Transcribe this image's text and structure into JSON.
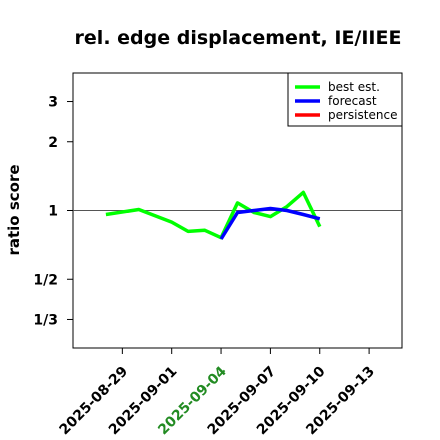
{
  "chart_data": {
    "type": "line",
    "title": "rel. edge displacement, IE/IIEE",
    "xlabel": "",
    "ylabel": "ratio score",
    "y_scale": "log",
    "ylim": [
      0.25,
      4.0
    ],
    "yticks": [
      {
        "value": 0.3333333333,
        "label": "1/3"
      },
      {
        "value": 0.5,
        "label": "1/2"
      },
      {
        "value": 1,
        "label": "1"
      },
      {
        "value": 2,
        "label": "2"
      },
      {
        "value": 3,
        "label": "3"
      }
    ],
    "xlim": [
      "2025-08-26",
      "2025-09-15"
    ],
    "xticks": [
      {
        "value": "2025-08-29",
        "label": "2025-08-29",
        "color": "#000000"
      },
      {
        "value": "2025-09-01",
        "label": "2025-09-01",
        "color": "#000000"
      },
      {
        "value": "2025-09-04",
        "label": "2025-09-04",
        "color": "#228b22"
      },
      {
        "value": "2025-09-07",
        "label": "2025-09-07",
        "color": "#000000"
      },
      {
        "value": "2025-09-10",
        "label": "2025-09-10",
        "color": "#000000"
      },
      {
        "value": "2025-09-13",
        "label": "2025-09-13",
        "color": "#000000"
      }
    ],
    "reference_line": 1,
    "legend": {
      "position": "top-right",
      "entries": [
        {
          "name": "best est.",
          "color": "#00ff00"
        },
        {
          "name": "forecast",
          "color": "#0000ff"
        },
        {
          "name": "persistence",
          "color": "#ff0000"
        }
      ]
    },
    "series": [
      {
        "name": "best est.",
        "color": "#00ff00",
        "x": [
          "2025-08-28",
          "2025-08-30",
          "2025-09-01",
          "2025-09-02",
          "2025-09-03",
          "2025-09-04",
          "2025-09-05",
          "2025-09-06",
          "2025-09-07",
          "2025-09-08",
          "2025-09-09",
          "2025-09-10"
        ],
        "y": [
          0.96,
          1.01,
          0.89,
          0.81,
          0.82,
          0.76,
          1.08,
          0.98,
          0.94,
          1.04,
          1.2,
          0.85
        ]
      },
      {
        "name": "forecast",
        "color": "#0000ff",
        "x": [
          "2025-09-04",
          "2025-09-05",
          "2025-09-06",
          "2025-09-07",
          "2025-09-08",
          "2025-09-09",
          "2025-09-10"
        ],
        "y": [
          0.75,
          0.98,
          1.0,
          1.02,
          1.0,
          0.96,
          0.92
        ]
      },
      {
        "name": "persistence",
        "color": "#ff0000",
        "x": [],
        "y": []
      }
    ]
  }
}
